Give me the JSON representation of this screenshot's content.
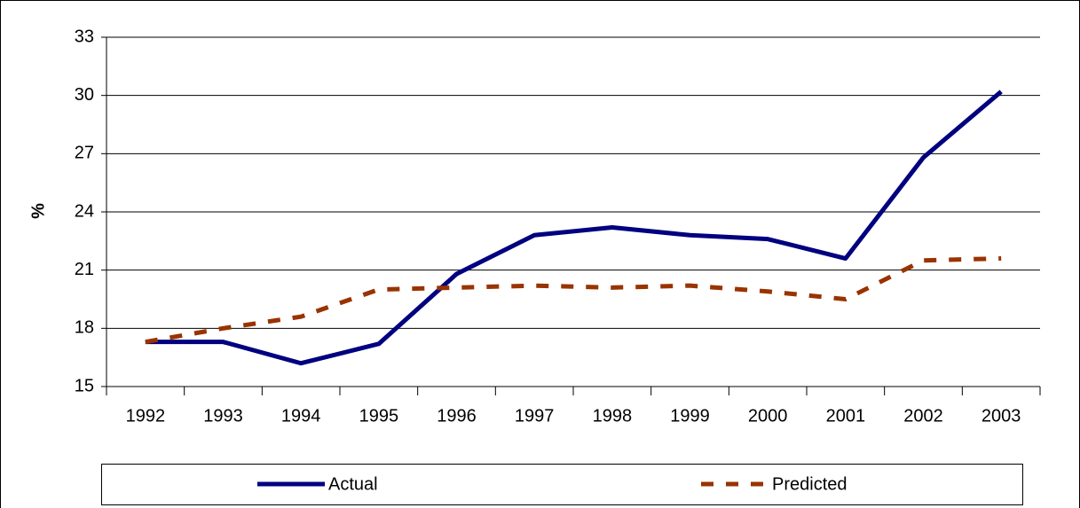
{
  "chart_data": {
    "type": "line",
    "ylabel": "%",
    "categories": [
      "1992",
      "1993",
      "1994",
      "1995",
      "1996",
      "1997",
      "1998",
      "1999",
      "2000",
      "2001",
      "2002",
      "2003"
    ],
    "series": [
      {
        "name": "Actual",
        "color": "#000080",
        "style": "solid",
        "values": [
          17.3,
          17.3,
          16.2,
          17.2,
          20.8,
          22.8,
          23.2,
          22.8,
          22.6,
          21.6,
          26.8,
          30.2
        ]
      },
      {
        "name": "Predicted",
        "color": "#993300",
        "style": "dashed",
        "values": [
          17.3,
          18.0,
          18.6,
          20.0,
          20.1,
          20.2,
          20.1,
          20.2,
          19.9,
          19.5,
          21.5,
          21.6
        ]
      }
    ],
    "ylim": [
      15,
      33
    ],
    "yticks": [
      15,
      18,
      21,
      24,
      27,
      30,
      33
    ],
    "grid": true,
    "legend": "bottom"
  }
}
